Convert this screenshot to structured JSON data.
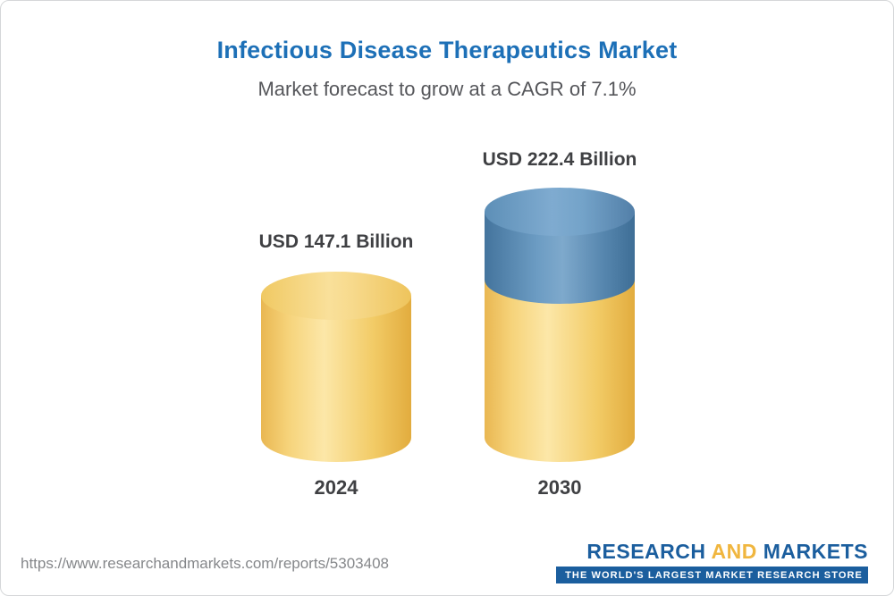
{
  "header": {
    "title": "Infectious Disease Therapeutics Market",
    "subtitle": "Market forecast to grow at a CAGR of 7.1%"
  },
  "chart_data": {
    "type": "bar",
    "categories": [
      "2024",
      "2030"
    ],
    "values": [
      147.1,
      222.4
    ],
    "value_labels": [
      "USD 147.1 Billion",
      "USD 222.4 Billion"
    ],
    "unit": "USD Billion",
    "title": "Infectious Disease Therapeutics Market",
    "subtitle": "Market forecast to grow at a CAGR of 7.1%",
    "cagr_percent": 7.1,
    "bar_style": "3d-cylinder",
    "bar_colors": {
      "2024": "#f3cd6e",
      "2030_base": "#f3cd6e",
      "2030_growth_segment": "#5b8cb4"
    },
    "axis": {
      "x_visible": false,
      "y_visible": false,
      "grid": false
    },
    "legend": "none"
  },
  "colors": {
    "title_blue": "#1d70b7",
    "subtitle_gray": "#55565a",
    "label_dark": "#3f4043",
    "yellow_bar": "#f3cd6e",
    "blue_bar": "#5b8cb4",
    "logo_blue": "#1b5e9e",
    "logo_gold": "#f0b63f",
    "url_gray": "#85878a"
  },
  "footer": {
    "url": "https://www.researchandmarkets.com/reports/5303408",
    "logo": {
      "part1": "RESEARCH",
      "part2": "AND",
      "part3": "MARKETS",
      "tagline": "THE WORLD'S LARGEST MARKET RESEARCH STORE"
    }
  }
}
